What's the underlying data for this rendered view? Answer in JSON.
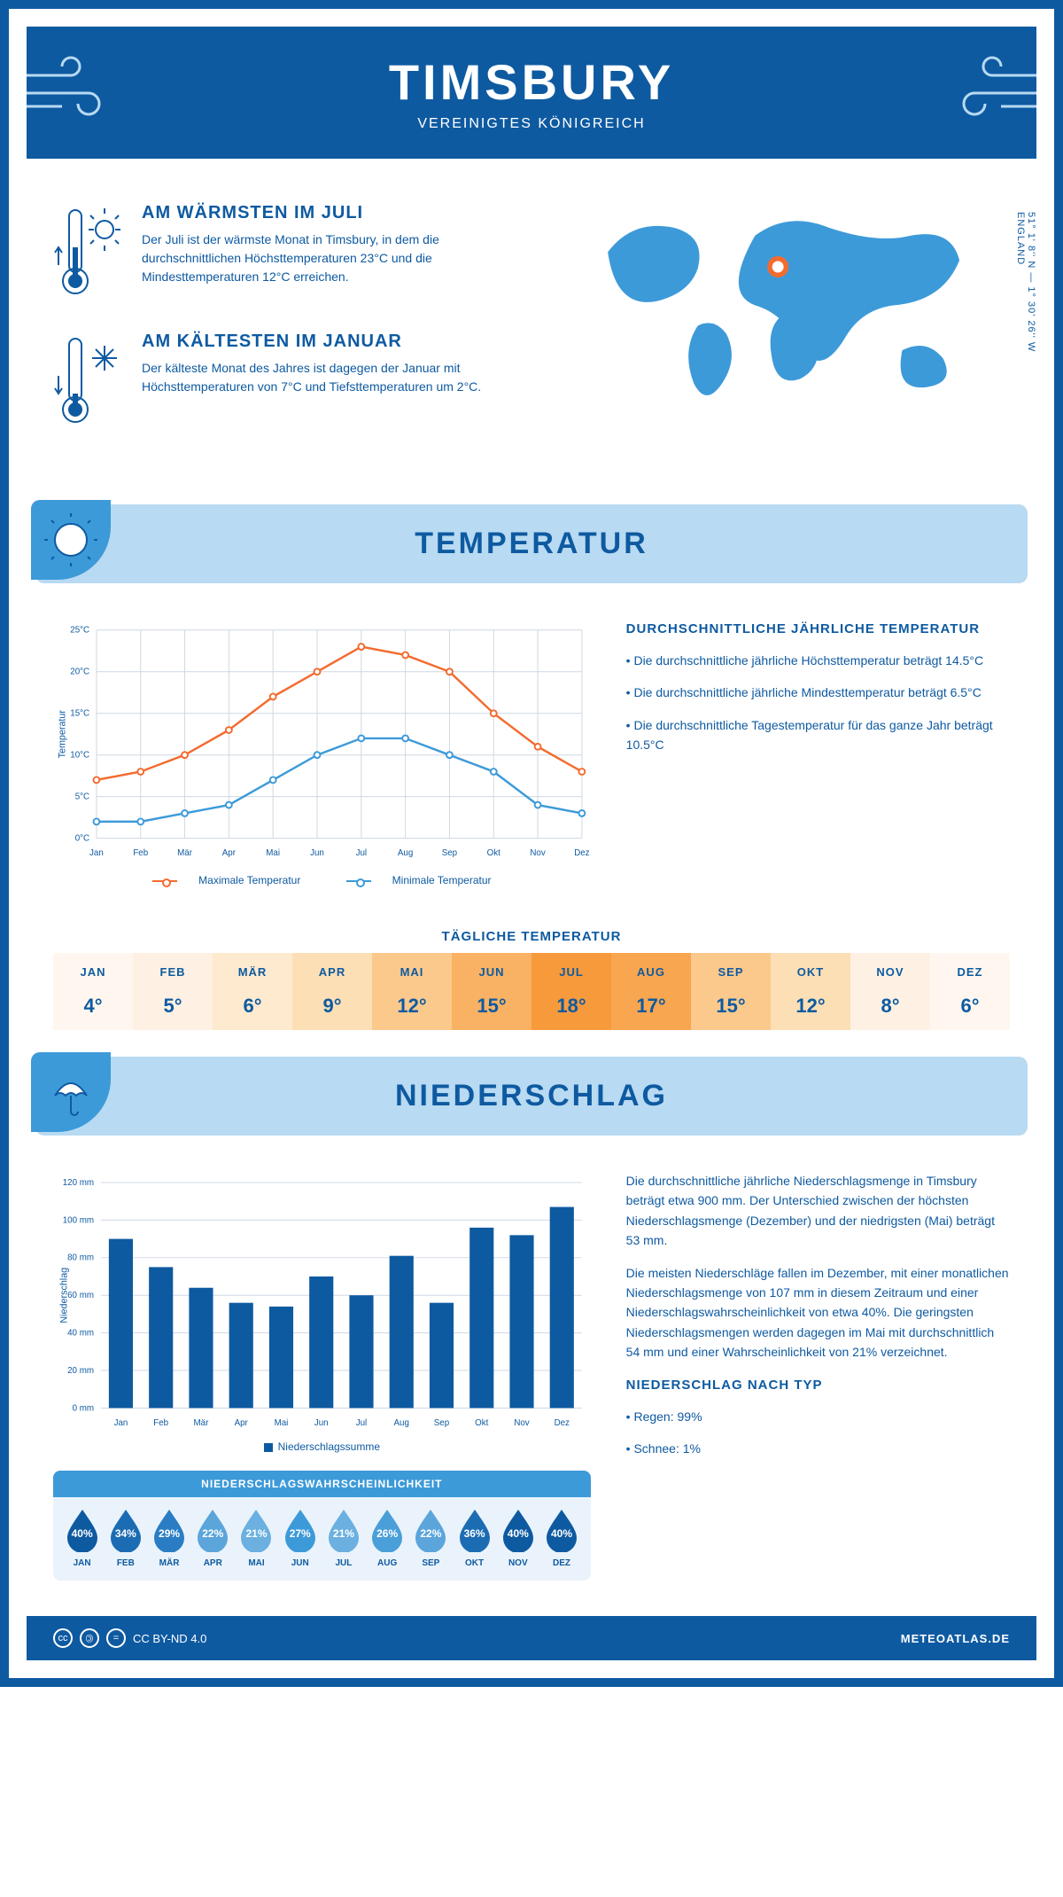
{
  "header": {
    "title": "TIMSBURY",
    "subtitle": "VEREINIGTES KÖNIGREICH"
  },
  "coords": {
    "lat": "51° 1' 8'' N",
    "lon": "1° 30' 26'' W",
    "region": "ENGLAND"
  },
  "intro": {
    "warm": {
      "title": "AM WÄRMSTEN IM JULI",
      "text": "Der Juli ist der wärmste Monat in Timsbury, in dem die durchschnittlichen Höchsttemperaturen 23°C und die Mindesttemperaturen 12°C erreichen."
    },
    "cold": {
      "title": "AM KÄLTESTEN IM JANUAR",
      "text": "Der kälteste Monat des Jahres ist dagegen der Januar mit Höchsttemperaturen von 7°C und Tiefsttemperaturen um 2°C."
    }
  },
  "temperature": {
    "section_title": "TEMPERATUR",
    "chart": {
      "type": "line",
      "months": [
        "Jan",
        "Feb",
        "Mär",
        "Apr",
        "Mai",
        "Jun",
        "Jul",
        "Aug",
        "Sep",
        "Okt",
        "Nov",
        "Dez"
      ],
      "max_series": [
        7,
        8,
        10,
        13,
        17,
        20,
        23,
        22,
        20,
        15,
        11,
        8
      ],
      "min_series": [
        2,
        2,
        3,
        4,
        7,
        10,
        12,
        12,
        10,
        8,
        4,
        3
      ],
      "max_color": "#f36b2f",
      "min_color": "#3d9ad9",
      "grid_color": "#cfd8e3",
      "ylim": [
        0,
        25
      ],
      "ytick_step": 5,
      "ylabel": "Temperatur",
      "legend_max": "Maximale Temperatur",
      "legend_min": "Minimale Temperatur"
    },
    "avg": {
      "title": "DURCHSCHNITTLICHE JÄHRLICHE TEMPERATUR",
      "items": [
        "• Die durchschnittliche jährliche Höchsttemperatur beträgt 14.5°C",
        "• Die durchschnittliche jährliche Mindesttemperatur beträgt 6.5°C",
        "• Die durchschnittliche Tagestemperatur für das ganze Jahr beträgt 10.5°C"
      ]
    },
    "daily": {
      "title": "TÄGLICHE TEMPERATUR",
      "months": [
        "JAN",
        "FEB",
        "MÄR",
        "APR",
        "MAI",
        "JUN",
        "JUL",
        "AUG",
        "SEP",
        "OKT",
        "NOV",
        "DEZ"
      ],
      "values": [
        "4°",
        "5°",
        "6°",
        "9°",
        "12°",
        "15°",
        "18°",
        "17°",
        "15°",
        "12°",
        "8°",
        "6°"
      ],
      "colors": [
        "#fff7ef",
        "#fef1e3",
        "#fdeacf",
        "#fcdfb5",
        "#fbc98c",
        "#f9b163",
        "#f79a3c",
        "#f8a64f",
        "#fbc98c",
        "#fcdfb5",
        "#fef1e3",
        "#fff7ef"
      ]
    }
  },
  "precip": {
    "section_title": "NIEDERSCHLAG",
    "chart": {
      "type": "bar",
      "months": [
        "Jan",
        "Feb",
        "Mär",
        "Apr",
        "Mai",
        "Jun",
        "Jul",
        "Aug",
        "Sep",
        "Okt",
        "Nov",
        "Dez"
      ],
      "values": [
        90,
        75,
        64,
        56,
        54,
        70,
        60,
        81,
        56,
        96,
        92,
        107
      ],
      "bar_color": "#0e5aa1",
      "grid_color": "#cfd8e3",
      "ylim": [
        0,
        120
      ],
      "ytick_step": 20,
      "ylabel": "Niederschlag",
      "legend": "Niederschlagssumme"
    },
    "text1": "Die durchschnittliche jährliche Niederschlagsmenge in Timsbury beträgt etwa 900 mm. Der Unterschied zwischen der höchsten Niederschlagsmenge (Dezember) und der niedrigsten (Mai) beträgt 53 mm.",
    "text2": "Die meisten Niederschläge fallen im Dezember, mit einer monatlichen Niederschlagsmenge von 107 mm in diesem Zeitraum und einer Niederschlagswahrscheinlichkeit von etwa 40%. Die geringsten Niederschlagsmengen werden dagegen im Mai mit durchschnittlich 54 mm und einer Wahrscheinlichkeit von 21% verzeichnet.",
    "type_title": "NIEDERSCHLAG NACH TYP",
    "type_items": [
      "• Regen: 99%",
      "• Schnee: 1%"
    ],
    "drops": {
      "title": "NIEDERSCHLAGSWAHRSCHEINLICHKEIT",
      "months": [
        "JAN",
        "FEB",
        "MÄR",
        "APR",
        "MAI",
        "JUN",
        "JUL",
        "AUG",
        "SEP",
        "OKT",
        "NOV",
        "DEZ"
      ],
      "pcts": [
        "40%",
        "34%",
        "29%",
        "22%",
        "21%",
        "27%",
        "21%",
        "26%",
        "22%",
        "36%",
        "40%",
        "40%"
      ],
      "colors": [
        "#0e5aa1",
        "#1c6cb3",
        "#2a7dc4",
        "#5ba5db",
        "#6bb0e0",
        "#3d9ad9",
        "#6bb0e0",
        "#4a9fd9",
        "#5ba5db",
        "#1c6cb3",
        "#0e5aa1",
        "#0e5aa1"
      ]
    }
  },
  "footer": {
    "license": "CC BY-ND 4.0",
    "brand": "METEOATLAS.DE"
  },
  "colors": {
    "primary": "#0e5aa1",
    "light": "#b8daf2",
    "accent": "#3d9ad9"
  }
}
